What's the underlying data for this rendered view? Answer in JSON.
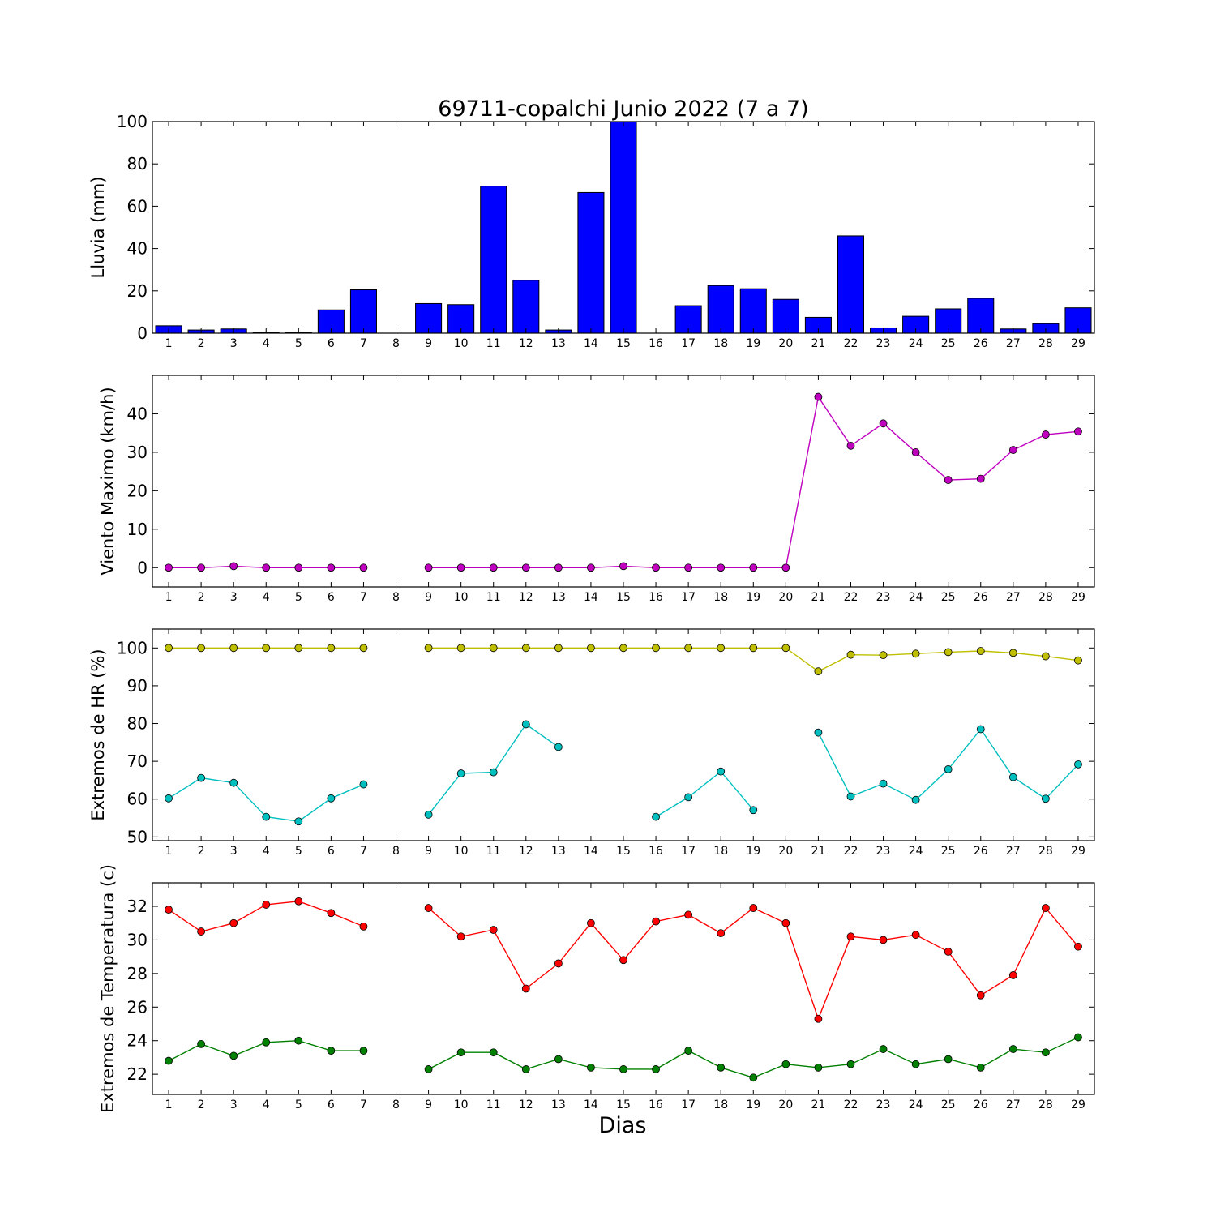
{
  "chart_data": [
    {
      "type": "bar",
      "title": "69711-copalchi Junio 2022  (7 a 7)",
      "ylabel": "Lluvia (mm)",
      "xlabel": "",
      "x": [
        1,
        2,
        3,
        4,
        5,
        6,
        7,
        8,
        9,
        10,
        11,
        12,
        13,
        14,
        15,
        16,
        17,
        18,
        19,
        20,
        21,
        22,
        23,
        24,
        25,
        26,
        27,
        28,
        29
      ],
      "ylim": [
        0,
        100
      ],
      "yticks": [
        0,
        20,
        40,
        60,
        80,
        100
      ],
      "bar_color": "#0000ff",
      "values": [
        3.5,
        1.5,
        2.0,
        0.2,
        0.2,
        11.0,
        20.5,
        null,
        14.0,
        13.5,
        69.5,
        25.0,
        1.5,
        66.5,
        100.0,
        0.0,
        13.0,
        22.5,
        21.0,
        16.0,
        7.5,
        46.0,
        2.5,
        8.0,
        11.5,
        16.5,
        2.0,
        4.5,
        12.0
      ]
    },
    {
      "type": "line",
      "ylabel": "Viento Maximo (km/h)",
      "x": [
        1,
        2,
        3,
        4,
        5,
        6,
        7,
        8,
        9,
        10,
        11,
        12,
        13,
        14,
        15,
        16,
        17,
        18,
        19,
        20,
        21,
        22,
        23,
        24,
        25,
        26,
        27,
        28,
        29
      ],
      "ylim": [
        -5,
        50
      ],
      "yticks": [
        0,
        10,
        20,
        30,
        40
      ],
      "series": [
        {
          "color": "#bf00bf",
          "values": [
            0,
            0,
            0.4,
            0,
            0,
            0,
            0,
            null,
            0,
            0,
            0,
            0,
            0,
            0,
            0.4,
            0,
            0,
            0,
            0,
            0,
            44.4,
            31.7,
            37.5,
            30.0,
            22.8,
            23.1,
            30.6,
            34.6,
            35.4
          ]
        }
      ]
    },
    {
      "type": "line",
      "ylabel": "Extremos de HR (%)",
      "x": [
        1,
        2,
        3,
        4,
        5,
        6,
        7,
        8,
        9,
        10,
        11,
        12,
        13,
        14,
        15,
        16,
        17,
        18,
        19,
        20,
        21,
        22,
        23,
        24,
        25,
        26,
        27,
        28,
        29
      ],
      "ylim": [
        49,
        105
      ],
      "yticks": [
        50,
        60,
        70,
        80,
        90,
        100
      ],
      "series": [
        {
          "color": "#bfbf00",
          "values": [
            100,
            100,
            100,
            100,
            100,
            100,
            100,
            null,
            100,
            100,
            100,
            100,
            100,
            100,
            100,
            100,
            100,
            100,
            100,
            100,
            93.8,
            98.2,
            98.1,
            98.5,
            98.9,
            99.2,
            98.7,
            97.8,
            96.7
          ]
        },
        {
          "color": "#00bfbf",
          "values": [
            60.2,
            65.6,
            64.3,
            55.3,
            54.1,
            60.2,
            63.9,
            null,
            55.9,
            66.8,
            67.1,
            79.8,
            73.8,
            null,
            null,
            55.3,
            60.5,
            67.3,
            57.1,
            null,
            77.6,
            60.7,
            64.1,
            59.8,
            67.9,
            78.5,
            65.8,
            60.1,
            69.2
          ]
        }
      ]
    },
    {
      "type": "line",
      "ylabel": "Extremos de Temperatura (c)",
      "xlabel": "Dias",
      "x": [
        1,
        2,
        3,
        4,
        5,
        6,
        7,
        8,
        9,
        10,
        11,
        12,
        13,
        14,
        15,
        16,
        17,
        18,
        19,
        20,
        21,
        22,
        23,
        24,
        25,
        26,
        27,
        28,
        29
      ],
      "ylim": [
        20.8,
        33.4
      ],
      "yticks": [
        22,
        24,
        26,
        28,
        30,
        32
      ],
      "series": [
        {
          "color": "#ff0000",
          "values": [
            31.8,
            30.5,
            31.0,
            32.1,
            32.3,
            31.6,
            30.8,
            null,
            31.9,
            30.2,
            30.6,
            27.1,
            28.6,
            31.0,
            28.8,
            31.1,
            31.5,
            30.4,
            31.9,
            31.0,
            25.3,
            30.2,
            30.0,
            30.3,
            29.3,
            26.7,
            27.9,
            31.9,
            29.6
          ]
        },
        {
          "color": "#008000",
          "values": [
            22.8,
            23.8,
            23.1,
            23.9,
            24.0,
            23.4,
            23.4,
            null,
            22.3,
            23.3,
            23.3,
            22.3,
            22.9,
            22.4,
            22.3,
            22.3,
            23.4,
            22.4,
            21.8,
            22.6,
            22.4,
            22.6,
            23.5,
            22.6,
            22.9,
            22.4,
            23.5,
            23.3,
            24.2
          ]
        }
      ]
    }
  ]
}
